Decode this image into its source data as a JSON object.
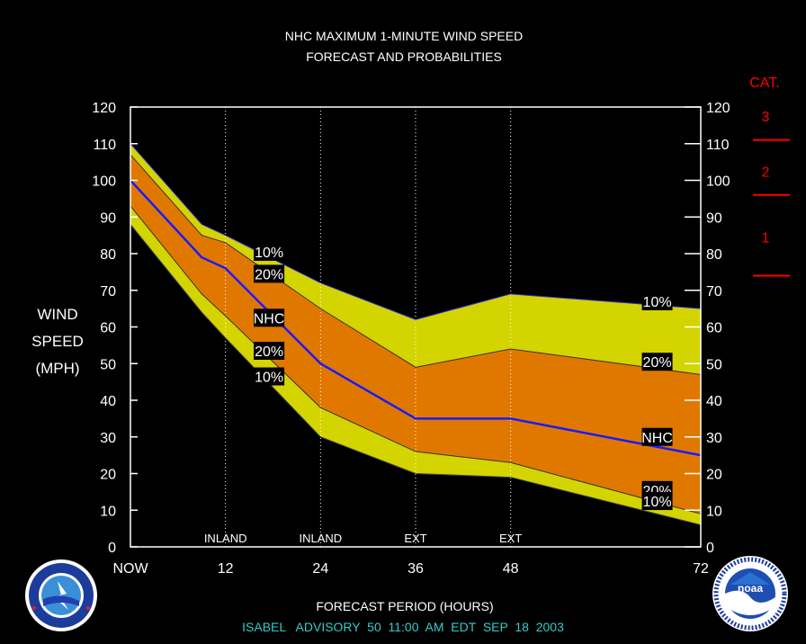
{
  "title": {
    "line1": "NHC MAXIMUM 1-MINUTE WIND SPEED",
    "line2": "FORECAST AND PROBABILITIES"
  },
  "ylabel": {
    "line1": "WIND",
    "line2": "SPEED",
    "line3": "(MPH)"
  },
  "xlabel": "FORECAST PERIOD (HOURS)",
  "footer": "ISABEL   ADVISORY  50  11:00  AM  EDT  SEP  18  2003",
  "category": {
    "header": "CAT.",
    "labels": [
      "3",
      "2",
      "1"
    ],
    "thresholds": [
      111,
      96,
      74
    ]
  },
  "colors": {
    "band10": "#d4d400",
    "band20": "#e07800",
    "nhc_line": "#1a1aff",
    "category": "#ff0000",
    "footer": "#33cccc"
  },
  "logos": {
    "left": "nws-logo",
    "right": "noaa-logo"
  },
  "chart_data": {
    "type": "area",
    "xlim": [
      0,
      72
    ],
    "ylim": [
      0,
      120
    ],
    "yticks": [
      0,
      10,
      20,
      30,
      40,
      50,
      60,
      70,
      80,
      90,
      100,
      110,
      120
    ],
    "xticks": [
      {
        "x": 0,
        "label": "NOW"
      },
      {
        "x": 12,
        "label": "12"
      },
      {
        "x": 24,
        "label": "24"
      },
      {
        "x": 36,
        "label": "36"
      },
      {
        "x": 48,
        "label": "48"
      },
      {
        "x": 72,
        "label": "72"
      }
    ],
    "verticals": [
      {
        "x": 12,
        "label": "INLAND"
      },
      {
        "x": 24,
        "label": "INLAND"
      },
      {
        "x": 36,
        "label": "EXT"
      },
      {
        "x": 48,
        "label": "EXT"
      }
    ],
    "x": [
      0,
      9,
      12,
      24,
      36,
      48,
      72
    ],
    "series": [
      {
        "name": "10%",
        "upper": [
          110,
          88,
          85,
          72,
          62,
          69,
          65
        ],
        "lower": [
          88,
          64,
          57,
          30,
          20,
          19,
          6
        ]
      },
      {
        "name": "20%",
        "upper": [
          107,
          85,
          83,
          65,
          49,
          54,
          47
        ],
        "lower": [
          93,
          69,
          63,
          38,
          26,
          23,
          9
        ]
      },
      {
        "name": "NHC",
        "values": [
          100,
          79,
          76,
          50,
          35,
          35,
          25
        ]
      }
    ],
    "annotations": [
      {
        "text": "10%",
        "x": 17.5,
        "y": 80.5
      },
      {
        "text": "20%",
        "x": 17.5,
        "y": 74.5
      },
      {
        "text": "NHC",
        "x": 17.5,
        "y": 62.5
      },
      {
        "text": "20%",
        "x": 17.5,
        "y": 53.5
      },
      {
        "text": "10%",
        "x": 17.5,
        "y": 46.5
      },
      {
        "text": "10%",
        "x": 66.5,
        "y": 67
      },
      {
        "text": "20%",
        "x": 66.5,
        "y": 50.5
      },
      {
        "text": "NHC",
        "x": 66.5,
        "y": 30
      },
      {
        "text": "20%",
        "x": 66.5,
        "y": 15.5
      },
      {
        "text": "10%",
        "x": 66.5,
        "y": 12.5
      }
    ]
  }
}
